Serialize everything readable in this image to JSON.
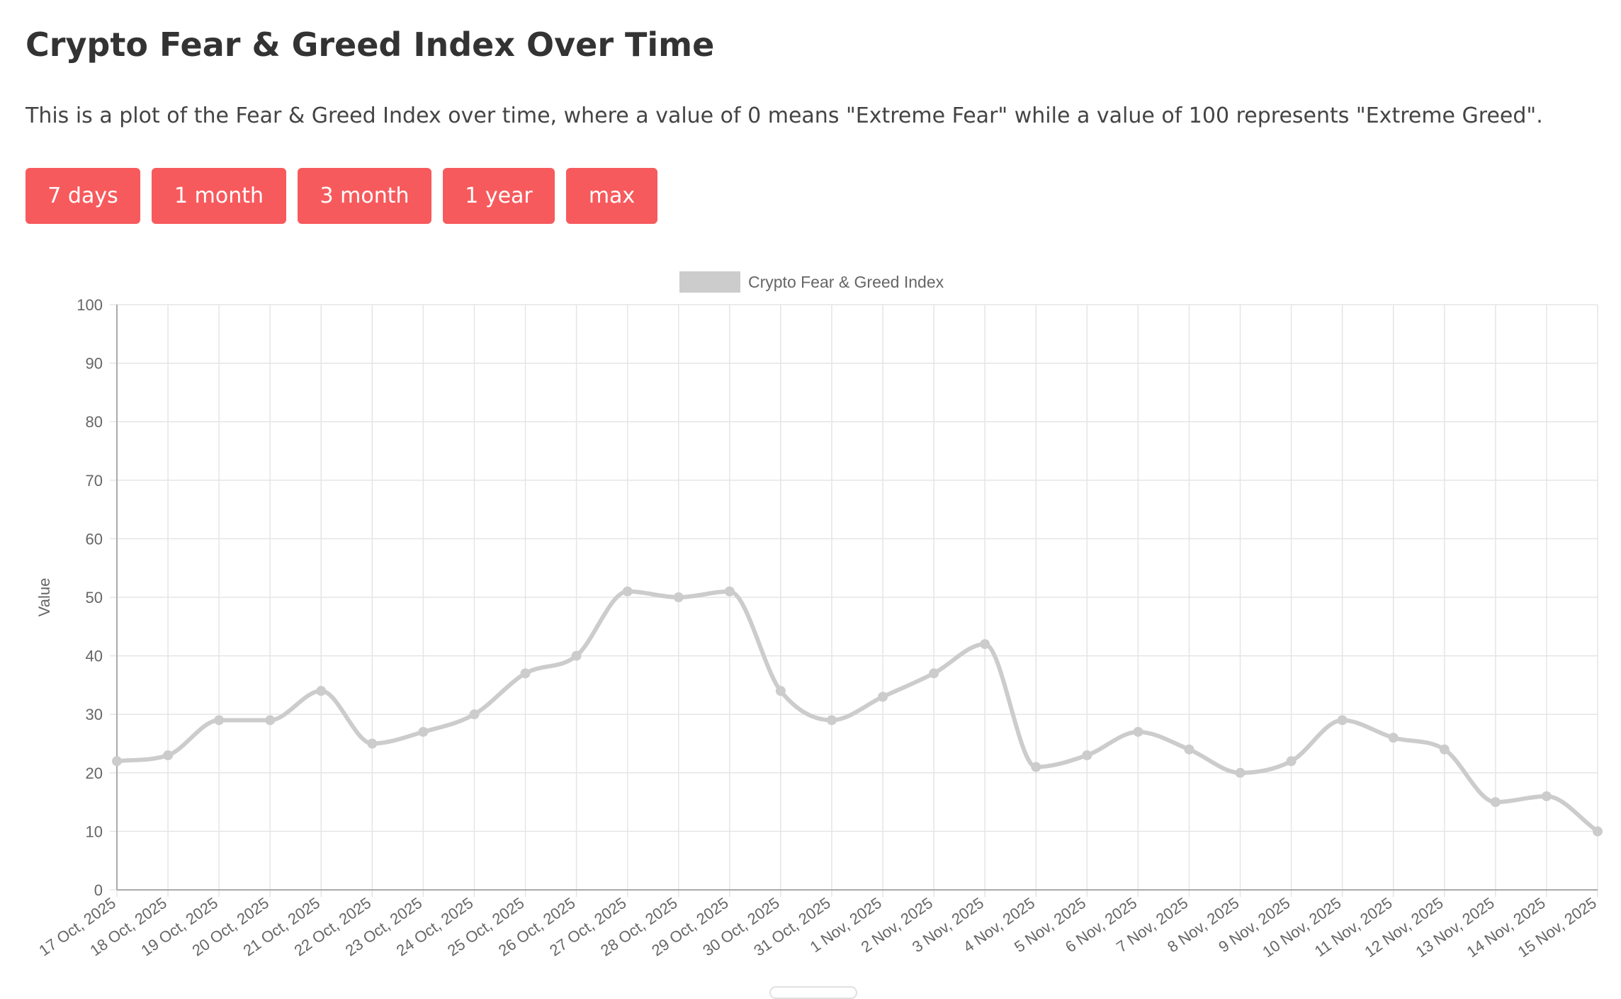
{
  "page": {
    "title": "Crypto Fear & Greed Index Over Time",
    "description": "This is a plot of the Fear & Greed Index over time, where a value of 0 means \"Extreme Fear\" while a value of 100 represents \"Extreme Greed\"."
  },
  "range_buttons": [
    {
      "label": "7 days"
    },
    {
      "label": "1 month"
    },
    {
      "label": "3 month"
    },
    {
      "label": "1 year"
    },
    {
      "label": "max"
    }
  ],
  "chart_data": {
    "type": "line",
    "title": "",
    "xlabel": "",
    "ylabel": "Value",
    "ylim": [
      0,
      100
    ],
    "yticks": [
      0,
      10,
      20,
      30,
      40,
      50,
      60,
      70,
      80,
      90,
      100
    ],
    "grid": true,
    "legend": "top-center",
    "categories": [
      "17 Oct, 2025",
      "18 Oct, 2025",
      "19 Oct, 2025",
      "20 Oct, 2025",
      "21 Oct, 2025",
      "22 Oct, 2025",
      "23 Oct, 2025",
      "24 Oct, 2025",
      "25 Oct, 2025",
      "26 Oct, 2025",
      "27 Oct, 2025",
      "28 Oct, 2025",
      "29 Oct, 2025",
      "30 Oct, 2025",
      "31 Oct, 2025",
      "1 Nov, 2025",
      "2 Nov, 2025",
      "3 Nov, 2025",
      "4 Nov, 2025",
      "5 Nov, 2025",
      "6 Nov, 2025",
      "7 Nov, 2025",
      "8 Nov, 2025",
      "9 Nov, 2025",
      "10 Nov, 2025",
      "11 Nov, 2025",
      "12 Nov, 2025",
      "13 Nov, 2025",
      "14 Nov, 2025",
      "15 Nov, 2025"
    ],
    "series": [
      {
        "name": "Crypto Fear & Greed Index",
        "color": "#cccccc",
        "values": [
          22,
          23,
          29,
          29,
          34,
          25,
          27,
          30,
          37,
          40,
          51,
          50,
          51,
          34,
          29,
          33,
          37,
          42,
          21,
          23,
          27,
          24,
          20,
          22,
          29,
          26,
          24,
          15,
          16,
          10
        ]
      }
    ]
  },
  "colors": {
    "button": "#f75a5d",
    "series": "#cccccc",
    "grid": "#e5e5e5",
    "axis_text": "#666666"
  }
}
